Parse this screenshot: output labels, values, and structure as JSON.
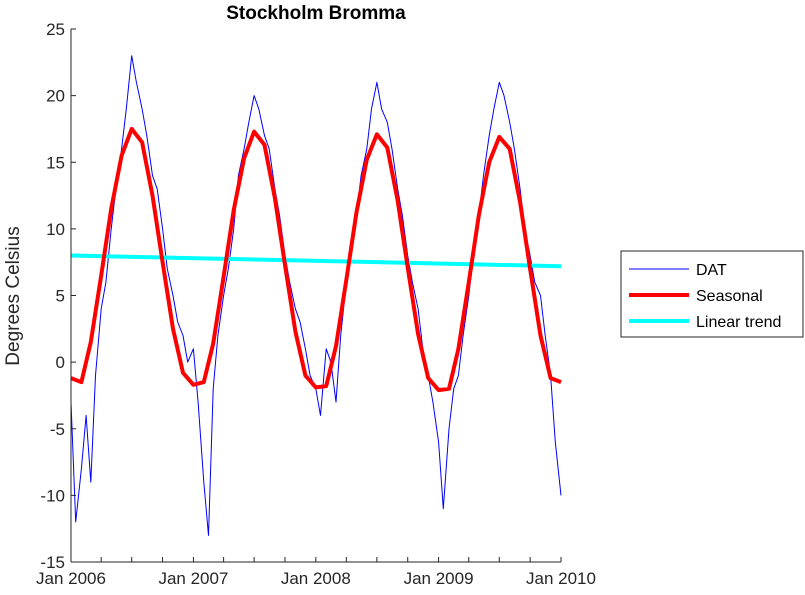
{
  "chart_data": {
    "type": "line",
    "title": "Stockholm Bromma",
    "xlabel": "",
    "ylabel": "Degrees Celsius",
    "xlim": [
      "2006-01-01",
      "2010-01-01"
    ],
    "ylim": [
      -15,
      25
    ],
    "xticks": [
      "Jan 2006",
      "Jan 2007",
      "Jan 2008",
      "Jan 2009",
      "Jan 2010"
    ],
    "yticks": [
      "-15",
      "-10",
      "-5",
      "0",
      "5",
      "10",
      "15",
      "20",
      "25"
    ],
    "grid": false,
    "legend": {
      "position": "right",
      "entries": [
        "DAT",
        "Seasonal",
        "Linear trend"
      ]
    },
    "series": [
      {
        "name": "DAT",
        "color": "#0000ff",
        "x": [
          "2006-01-01",
          "2006-01-15",
          "2006-02-01",
          "2006-02-15",
          "2006-03-01",
          "2006-03-15",
          "2006-04-01",
          "2006-04-15",
          "2006-05-01",
          "2006-05-15",
          "2006-06-01",
          "2006-06-15",
          "2006-07-01",
          "2006-07-15",
          "2006-08-01",
          "2006-08-15",
          "2006-09-01",
          "2006-09-15",
          "2006-10-01",
          "2006-10-15",
          "2006-11-01",
          "2006-11-15",
          "2006-12-01",
          "2006-12-15",
          "2007-01-01",
          "2007-01-15",
          "2007-02-01",
          "2007-02-15",
          "2007-03-01",
          "2007-03-15",
          "2007-04-01",
          "2007-04-15",
          "2007-05-01",
          "2007-05-15",
          "2007-06-01",
          "2007-06-15",
          "2007-07-01",
          "2007-07-15",
          "2007-08-01",
          "2007-08-15",
          "2007-09-01",
          "2007-09-15",
          "2007-10-01",
          "2007-10-15",
          "2007-11-01",
          "2007-11-15",
          "2007-12-01",
          "2007-12-15",
          "2008-01-01",
          "2008-01-15",
          "2008-02-01",
          "2008-02-15",
          "2008-03-01",
          "2008-03-15",
          "2008-04-01",
          "2008-04-15",
          "2008-05-01",
          "2008-05-15",
          "2008-06-01",
          "2008-06-15",
          "2008-07-01",
          "2008-07-15",
          "2008-08-01",
          "2008-08-15",
          "2008-09-01",
          "2008-09-15",
          "2008-10-01",
          "2008-10-15",
          "2008-11-01",
          "2008-11-15",
          "2008-12-01",
          "2008-12-15",
          "2009-01-01",
          "2009-01-15",
          "2009-02-01",
          "2009-02-15",
          "2009-03-01",
          "2009-03-15",
          "2009-04-01",
          "2009-04-15",
          "2009-05-01",
          "2009-05-15",
          "2009-06-01",
          "2009-06-15",
          "2009-07-01",
          "2009-07-15",
          "2009-08-01",
          "2009-08-15",
          "2009-09-01",
          "2009-09-15",
          "2009-10-01",
          "2009-10-15",
          "2009-11-01",
          "2009-11-15",
          "2009-12-01",
          "2009-12-15",
          "2010-01-01"
        ],
        "values": [
          -3,
          -12,
          -8,
          -4,
          -9,
          -1,
          4,
          6,
          10,
          13,
          16,
          19,
          23,
          21,
          19,
          17,
          14,
          13,
          10,
          7,
          5,
          3,
          2,
          0,
          1,
          -3,
          -9,
          -13,
          -2,
          2,
          5,
          7,
          10,
          14,
          16,
          18,
          20,
          19,
          17,
          16,
          13,
          11,
          8,
          6,
          4,
          3,
          1,
          -1,
          -2,
          -4,
          1,
          0,
          -3,
          2,
          6,
          8,
          11,
          14,
          16,
          19,
          21,
          19,
          18,
          16,
          13,
          11,
          8,
          6,
          4,
          1,
          -1,
          -3,
          -6,
          -11,
          -5,
          -2,
          -1,
          2,
          5,
          8,
          11,
          14,
          17,
          19,
          21,
          20,
          18,
          16,
          13,
          10,
          8,
          6,
          5,
          2,
          -1,
          -6,
          -10
        ]
      },
      {
        "name": "Seasonal",
        "color": "#ff0000",
        "x": [
          "2006-01-01",
          "2006-02-01",
          "2006-03-01",
          "2006-04-01",
          "2006-05-01",
          "2006-06-01",
          "2006-07-01",
          "2006-08-01",
          "2006-09-01",
          "2006-10-01",
          "2006-11-01",
          "2006-12-01",
          "2007-01-01",
          "2007-02-01",
          "2007-03-01",
          "2007-04-01",
          "2007-05-01",
          "2007-06-01",
          "2007-07-01",
          "2007-08-01",
          "2007-09-01",
          "2007-10-01",
          "2007-11-01",
          "2007-12-01",
          "2008-01-01",
          "2008-02-01",
          "2008-03-01",
          "2008-04-01",
          "2008-05-01",
          "2008-06-01",
          "2008-07-01",
          "2008-08-01",
          "2008-09-01",
          "2008-10-01",
          "2008-11-01",
          "2008-12-01",
          "2009-01-01",
          "2009-02-01",
          "2009-03-01",
          "2009-04-01",
          "2009-05-01",
          "2009-06-01",
          "2009-07-01",
          "2009-08-01",
          "2009-09-01",
          "2009-10-01",
          "2009-11-01",
          "2009-12-01",
          "2010-01-01"
        ],
        "values": [
          -1.2,
          -1.5,
          1.5,
          6.5,
          11.5,
          15.5,
          17.5,
          16.5,
          12.5,
          7.5,
          2.5,
          -0.8,
          -1.7,
          -1.5,
          1.4,
          6.4,
          11.4,
          15.3,
          17.3,
          16.3,
          12.3,
          7.3,
          2.3,
          -1.0,
          -1.9,
          -1.8,
          1.2,
          6.2,
          11.2,
          15.2,
          17.1,
          16.1,
          12.1,
          7.1,
          2.1,
          -1.2,
          -2.1,
          -2.0,
          1.0,
          6.0,
          11.0,
          15.0,
          16.9,
          16.0,
          12.0,
          7.0,
          2.0,
          -1.2,
          -1.5
        ]
      },
      {
        "name": "Linear trend",
        "color": "#00ffff",
        "x": [
          "2006-01-01",
          "2010-01-01"
        ],
        "values": [
          8.0,
          7.2
        ]
      }
    ]
  }
}
